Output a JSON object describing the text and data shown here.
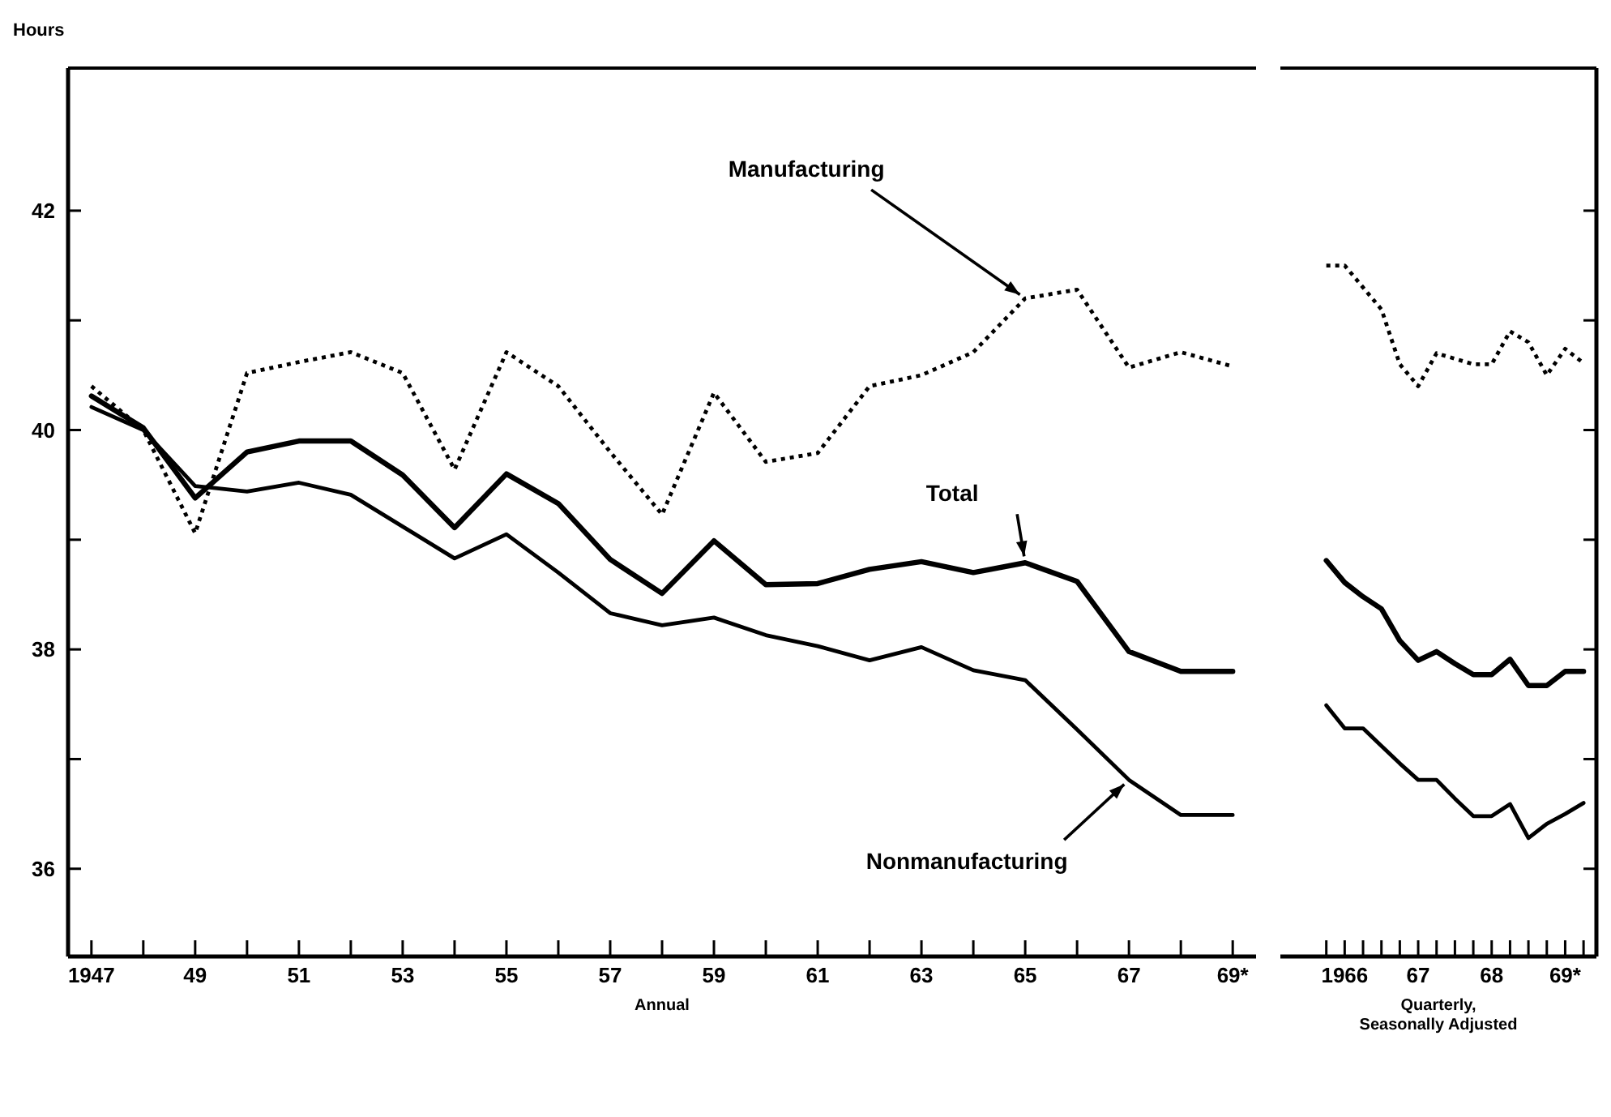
{
  "chart_data": [
    {
      "type": "line",
      "ylabel": "Hours",
      "xlabel": "Annual",
      "categories": [
        "1947",
        null,
        "49",
        null,
        "51",
        null,
        "53",
        null,
        "55",
        null,
        "57",
        null,
        "59",
        null,
        "61",
        null,
        "63",
        null,
        "65",
        null,
        "67",
        null,
        "69*"
      ],
      "series": [
        {
          "name": "Manufacturing",
          "color": "#000000",
          "line_style": "dotted",
          "values": [
            40.4,
            40.0,
            39.06,
            40.52,
            40.62,
            40.71,
            40.52,
            39.64,
            40.71,
            40.4,
            39.8,
            39.23,
            40.34,
            39.71,
            39.79,
            40.4,
            40.5,
            40.71,
            41.2,
            41.28,
            40.57,
            40.71,
            40.58
          ]
        },
        {
          "name": "Total",
          "color": "#000000",
          "line_style": "solid",
          "values": [
            40.31,
            40.02,
            39.38,
            39.8,
            39.9,
            39.9,
            39.59,
            39.11,
            39.6,
            39.33,
            38.82,
            38.51,
            38.99,
            38.59,
            38.6,
            38.73,
            38.8,
            38.7,
            38.79,
            38.62,
            37.98,
            37.8,
            37.8
          ]
        },
        {
          "name": "Nonmanufacturing",
          "color": "#000000",
          "line_style": "solid",
          "values": [
            40.21,
            40.0,
            39.49,
            39.44,
            39.52,
            39.41,
            39.12,
            38.83,
            39.05,
            38.7,
            38.33,
            38.22,
            38.29,
            38.13,
            38.03,
            37.9,
            38.02,
            37.81,
            37.72,
            37.27,
            36.81,
            36.49,
            36.49
          ]
        }
      ],
      "ylim": [
        35.2,
        43.3
      ],
      "yticks": [
        36,
        {
          "value": 37,
          "label": null
        },
        38,
        {
          "value": 39,
          "label": null
        },
        40,
        {
          "value": 41,
          "label": null
        },
        42
      ]
    },
    {
      "type": "line",
      "xlabel": "Quarterly, Seasonally Adjusted",
      "categories": [
        null,
        "1966",
        null,
        null,
        null,
        "67",
        null,
        null,
        null,
        "68",
        null,
        null,
        null,
        "69*",
        null
      ],
      "series": [
        {
          "color": "#000000",
          "line_style": "dotted",
          "values": [
            41.5,
            41.5,
            41.3,
            41.1,
            40.6,
            40.4,
            40.7,
            40.65,
            40.6,
            40.6,
            40.9,
            40.8,
            40.5,
            40.74,
            40.61
          ]
        },
        {
          "color": "#000000",
          "line_style": "solid",
          "values": [
            38.81,
            38.61,
            38.48,
            38.37,
            38.08,
            37.9,
            37.98,
            37.87,
            37.77,
            37.77,
            37.91,
            37.67,
            37.67,
            37.8,
            37.8
          ]
        },
        {
          "color": "#000000",
          "line_style": "solid",
          "values": [
            37.49,
            37.28,
            37.28,
            37.12,
            36.96,
            36.81,
            36.81,
            36.64,
            36.48,
            36.48,
            36.59,
            36.28,
            36.41,
            36.5,
            36.6
          ]
        }
      ],
      "ylim": [
        35.2,
        43.3
      ],
      "yticks": [
        {
          "value": 36,
          "label": null
        },
        {
          "value": 37,
          "label": null
        },
        {
          "value": 38,
          "label": null
        },
        {
          "value": 39,
          "label": null
        },
        {
          "value": 40,
          "label": null
        },
        {
          "value": 41,
          "label": null
        },
        {
          "value": 42,
          "label": null
        }
      ],
      "tick_labels": "x"
    }
  ]
}
